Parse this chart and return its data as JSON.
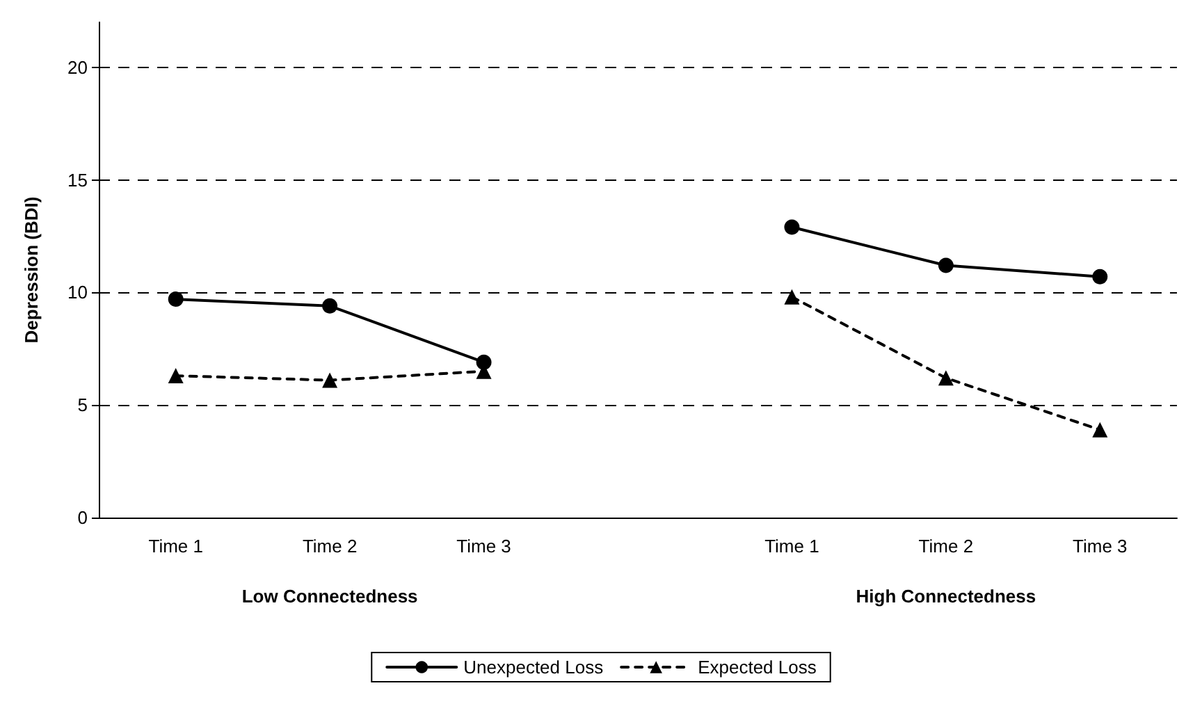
{
  "chart_data": {
    "type": "line",
    "ylabel": "Depression (BDI)",
    "categories": [
      "Time 1",
      "Time 2",
      "Time 3",
      null,
      "Time 1",
      "Time 2",
      "Time 3"
    ],
    "series": [
      {
        "name": "Unexpected Loss",
        "color": "#000000",
        "marker": "circle",
        "line_style": "solid",
        "values": [
          9.7,
          9.4,
          6.9,
          null,
          12.9,
          11.2,
          10.7
        ]
      },
      {
        "name": "Expected Loss",
        "color": "#000000",
        "marker": "triangle",
        "line_style": "dashed",
        "values": [
          6.3,
          6.1,
          6.5,
          null,
          9.8,
          6.2,
          3.9
        ]
      }
    ],
    "annotations": [
      "Low Connectedness",
      "High Connectedness"
    ],
    "ylim": [
      0,
      22
    ],
    "yticks": [
      0,
      5,
      10,
      15,
      20
    ],
    "grid": "y",
    "legend": "bottom"
  }
}
